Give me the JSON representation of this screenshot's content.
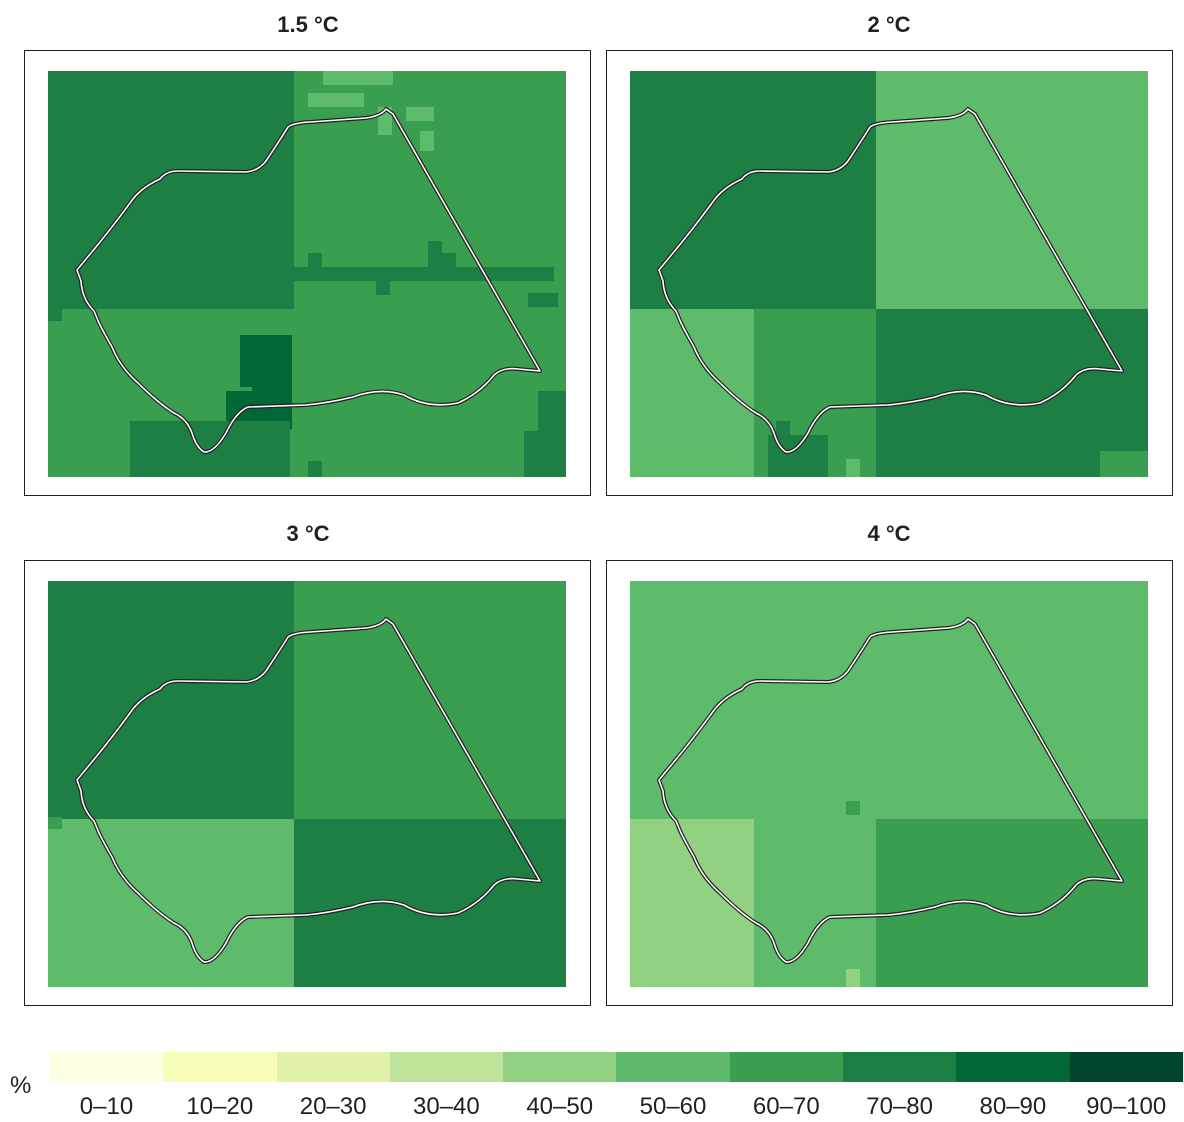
{
  "colors": {
    "0-10": "#ffffe5",
    "10-20": "#f7fcb9",
    "20-30": "#d9f0a3",
    "30-40": "#addd8e",
    "40-50": "#93d182",
    "50-60": "#5ebb6b",
    "60-70": "#3a9e50",
    "70-80": "#1e7f44",
    "80-90": "#006837",
    "90-100": "#00452a"
  },
  "legend": {
    "unit": "%",
    "bins": [
      {
        "label": "0–10",
        "color": "#fefee2"
      },
      {
        "label": "10–20",
        "color": "#f7fcb9"
      },
      {
        "label": "20–30",
        "color": "#dff2a8"
      },
      {
        "label": "30–40",
        "color": "#bfe39a"
      },
      {
        "label": "40–50",
        "color": "#93d182"
      },
      {
        "label": "50–60",
        "color": "#5eb96a"
      },
      {
        "label": "60–70",
        "color": "#3b9e50"
      },
      {
        "label": "70–80",
        "color": "#1d7f45"
      },
      {
        "label": "80–90",
        "color": "#006837"
      },
      {
        "label": "90–100",
        "color": "#00452b"
      }
    ]
  },
  "panels": [
    {
      "title": "1.5 °C",
      "quadrant_bins": {
        "nw": "70-80",
        "ne": "60-70",
        "sw": "60-70",
        "se": "60-70"
      },
      "nw_dominant": "70-80",
      "ne_dominant": "60-70",
      "sw_dominant": "60-70",
      "se_dominant": "60-70"
    },
    {
      "title": "2 °C",
      "quadrant_bins": {
        "nw": "70-80",
        "ne": "50-60",
        "sw": "50-60",
        "se": "70-80",
        "sw_center": "60-70"
      }
    },
    {
      "title": "3 °C",
      "quadrant_bins": {
        "nw": "70-80",
        "ne": "60-70",
        "sw": "50-60",
        "se": "70-80"
      }
    },
    {
      "title": "4 °C",
      "quadrant_bins": {
        "nw": "50-60",
        "ne": "50-60",
        "sw": "40-50",
        "se": "60-70",
        "sw_center": "50-60"
      }
    }
  ]
}
